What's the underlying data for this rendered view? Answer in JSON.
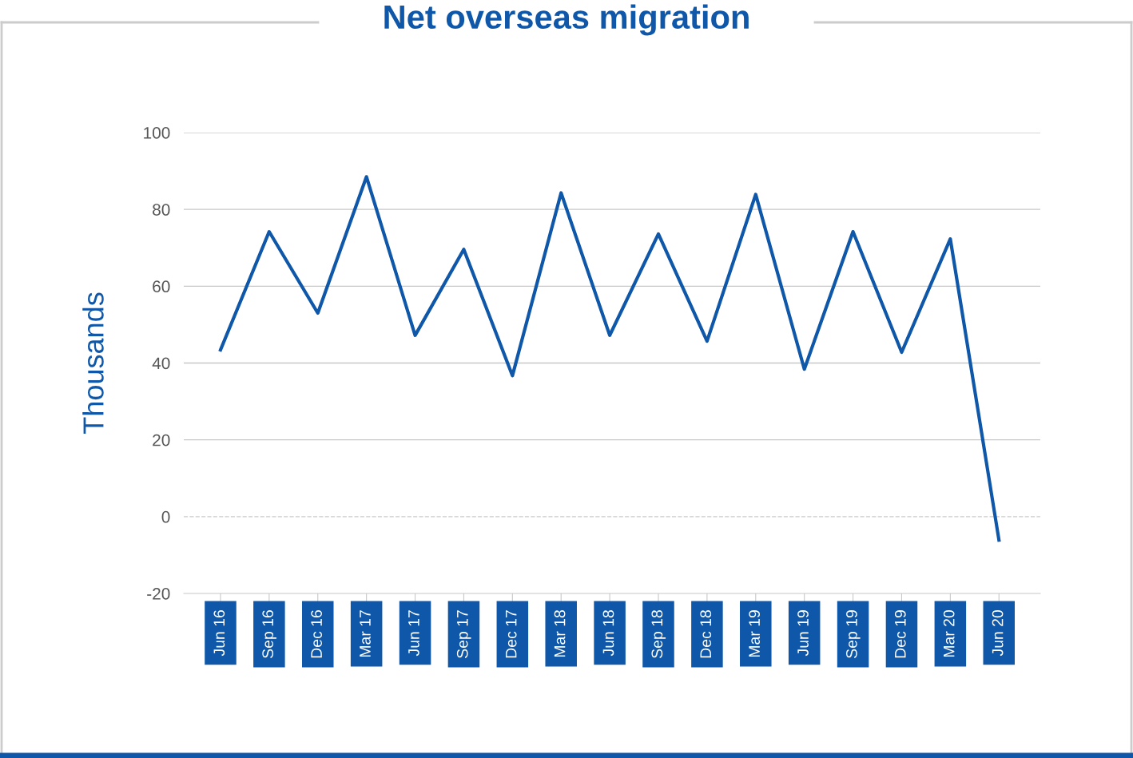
{
  "chart_data": {
    "type": "line",
    "title": "Net overseas migration",
    "ylabel": "Thousands",
    "categories": [
      "Jun 16",
      "Sep 16",
      "Dec 16",
      "Mar 17",
      "Jun 17",
      "Sep 17",
      "Dec 17",
      "Mar 18",
      "Jun 18",
      "Sep 18",
      "Dec 18",
      "Mar 19",
      "Jun 19",
      "Sep 19",
      "Dec 19",
      "Mar 20",
      "Jun 20"
    ],
    "series": [
      {
        "color": "#0f57a8",
        "values": [
          43.4,
          74.2,
          53,
          88.5,
          47.2,
          69.6,
          36.7,
          84.3,
          47.2,
          73.6,
          45.7,
          83.9,
          38.4,
          74.2,
          42.8,
          72.3,
          -6.1
        ]
      }
    ],
    "ylim": [
      -20,
      100
    ],
    "yticks": [
      -20,
      0,
      20,
      40,
      60,
      80,
      100
    ],
    "grid": "y",
    "marker": "none",
    "line_style": "solid",
    "ref_lines": [
      {
        "axis": "y",
        "value": 0,
        "color": "#cccccc",
        "line_style": "dashed"
      }
    ]
  }
}
